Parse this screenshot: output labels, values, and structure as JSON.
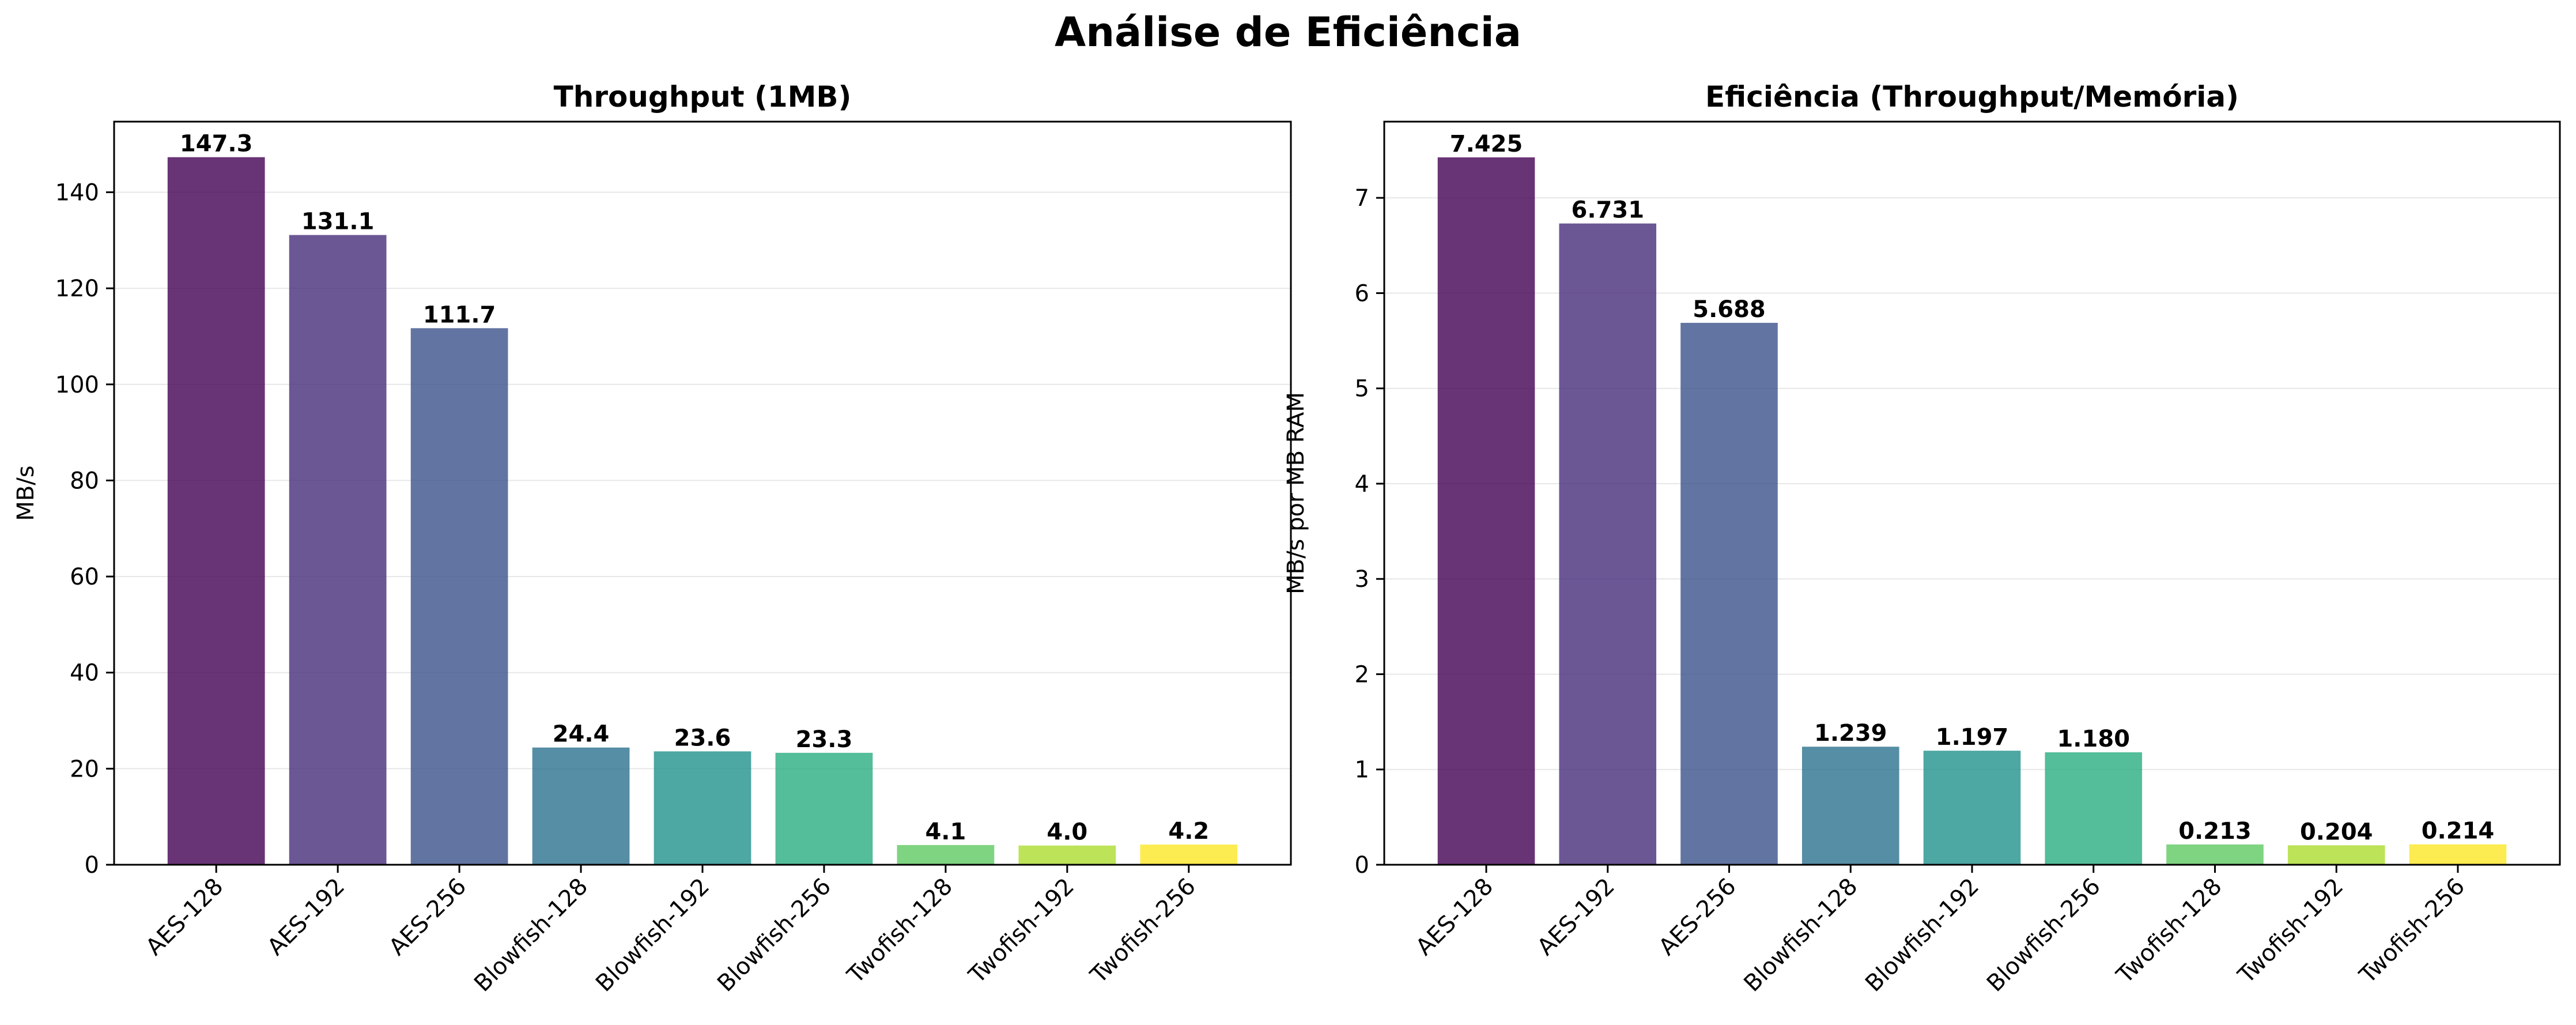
{
  "figure": {
    "title": "Análise de Eficiência"
  },
  "bar_colors": [
    "#440154",
    "#472d7b",
    "#3b528b",
    "#2c728e",
    "#21918c",
    "#28ae80",
    "#5ec962",
    "#addc30",
    "#fde725"
  ],
  "chart_data": [
    {
      "type": "bar",
      "title": "Throughput (1MB)",
      "xlabel": "",
      "ylabel": "MB/s",
      "categories": [
        "AES-128",
        "AES-192",
        "AES-256",
        "Blowfish-128",
        "Blowfish-192",
        "Blowfish-256",
        "Twofish-128",
        "Twofish-192",
        "Twofish-256"
      ],
      "values": [
        147.3,
        131.1,
        111.7,
        24.4,
        23.6,
        23.3,
        4.1,
        4.0,
        4.2
      ],
      "value_labels": [
        "147.3",
        "131.1",
        "111.7",
        "24.4",
        "23.6",
        "23.3",
        "4.1",
        "4.0",
        "4.2"
      ],
      "ylim": [
        0,
        154.7
      ],
      "yticks": [
        0,
        20,
        40,
        60,
        80,
        100,
        120,
        140
      ],
      "grid": "y"
    },
    {
      "type": "bar",
      "title": "Eficiência (Throughput/Memória)",
      "xlabel": "",
      "ylabel": "MB/s por MB RAM",
      "categories": [
        "AES-128",
        "AES-192",
        "AES-256",
        "Blowfish-128",
        "Blowfish-192",
        "Blowfish-256",
        "Twofish-128",
        "Twofish-192",
        "Twofish-256"
      ],
      "values": [
        7.425,
        6.731,
        5.688,
        1.239,
        1.197,
        1.18,
        0.213,
        0.204,
        0.214
      ],
      "value_labels": [
        "7.425",
        "6.731",
        "5.688",
        "1.239",
        "1.197",
        "1.180",
        "0.213",
        "0.204",
        "0.214"
      ],
      "ylim": [
        0,
        7.8
      ],
      "yticks": [
        0,
        1,
        2,
        3,
        4,
        5,
        6,
        7
      ],
      "grid": "y"
    }
  ]
}
